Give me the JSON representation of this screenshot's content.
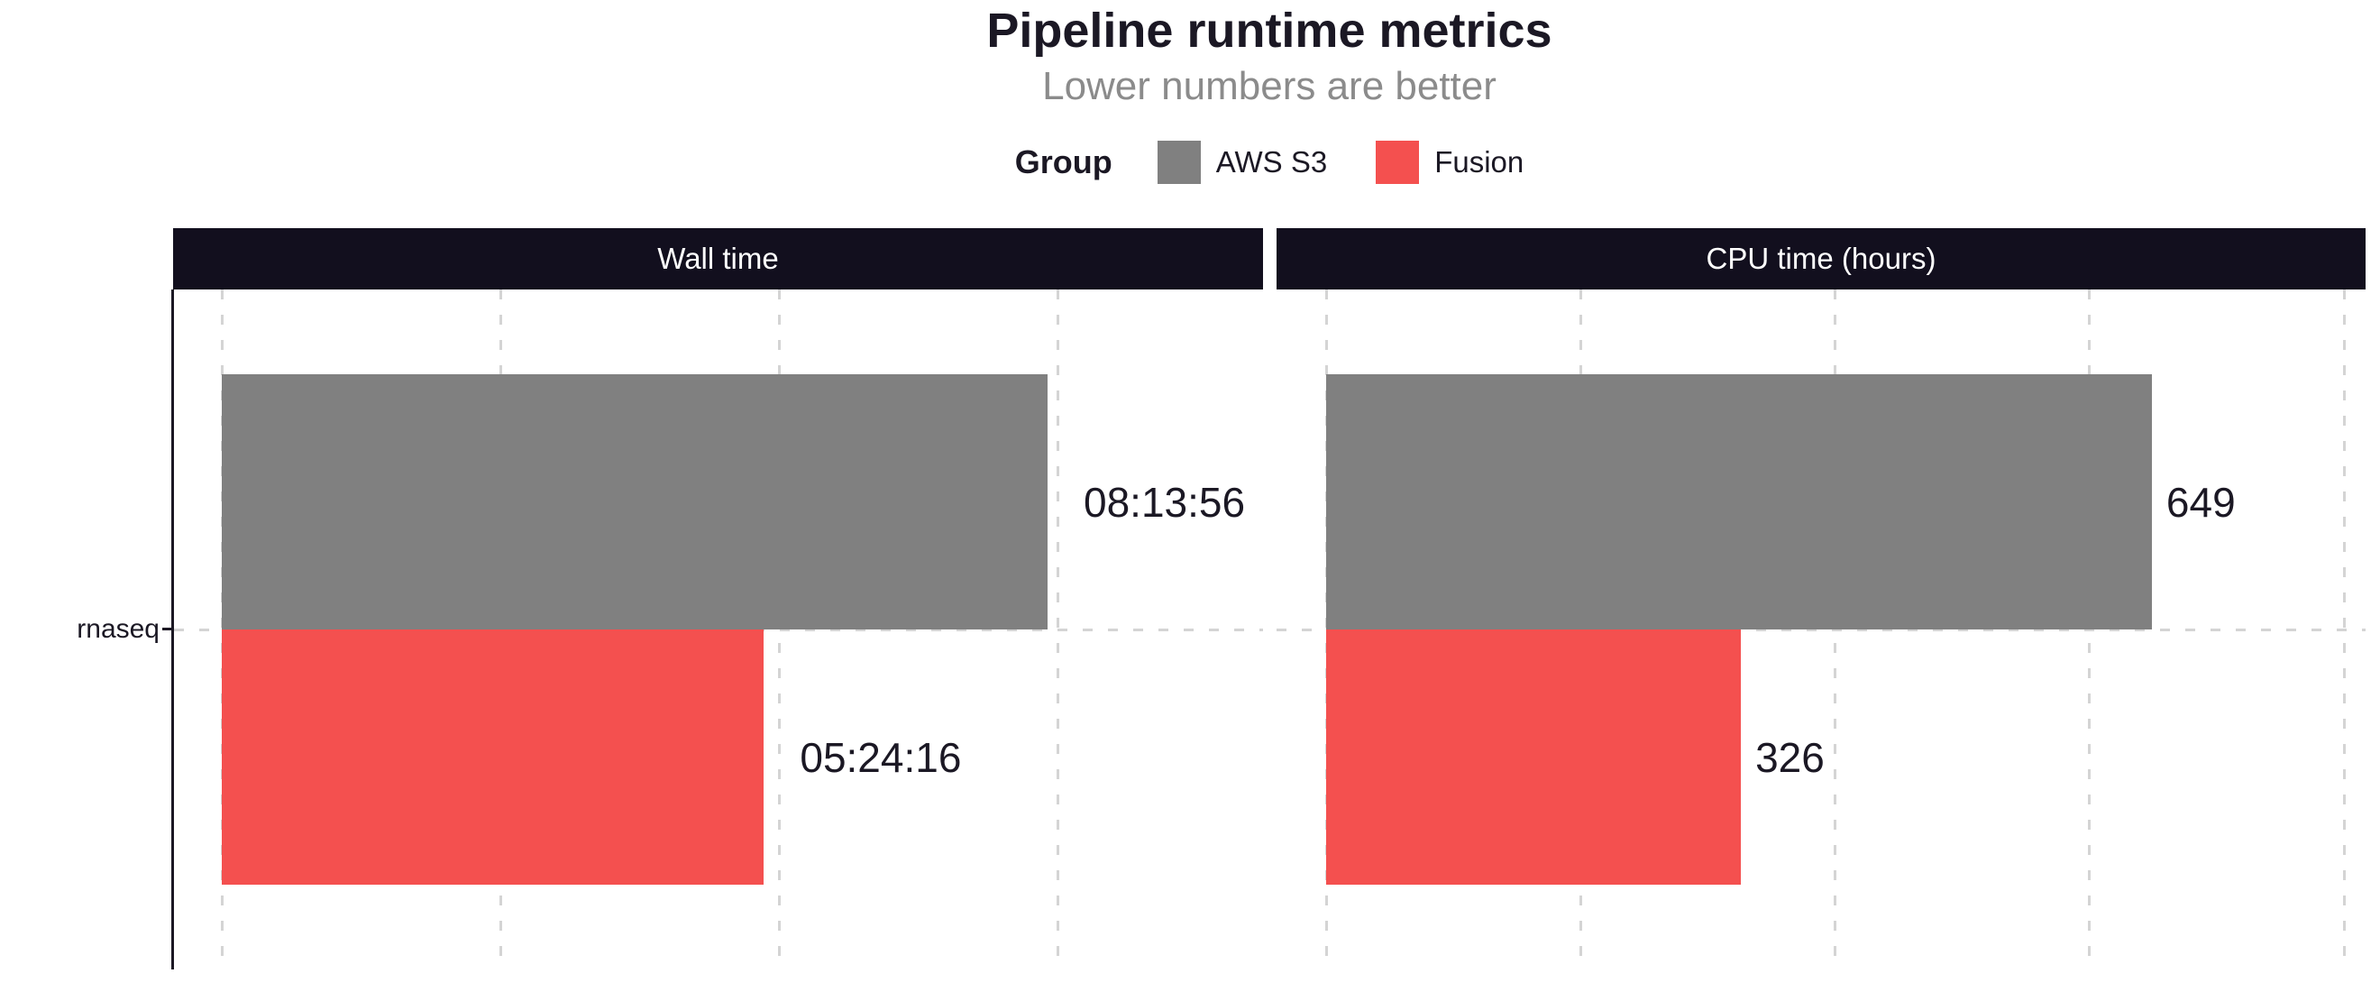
{
  "chart_data": {
    "type": "bar",
    "orientation": "horizontal",
    "title": "Pipeline runtime metrics",
    "subtitle": "Lower numbers are better",
    "legend": {
      "title": "Group",
      "position": "top",
      "entries": [
        {
          "label": "AWS S3",
          "color": "#808080"
        },
        {
          "label": "Fusion",
          "color": "#f4504f"
        }
      ]
    },
    "categories": [
      "rnaseq"
    ],
    "panels": [
      {
        "title": "Wall time",
        "xlim": [
          0,
          37368
        ],
        "gridlines": [
          0,
          10000,
          20000,
          30000
        ],
        "series": [
          {
            "group": "AWS S3",
            "value": 29636,
            "label": "08:13:56"
          },
          {
            "group": "Fusion",
            "value": 19456,
            "label": "05:24:16"
          }
        ]
      },
      {
        "title": "CPU time (hours)",
        "xlim": [
          0,
          817
        ],
        "gridlines": [
          0,
          200,
          400,
          600,
          800
        ],
        "series": [
          {
            "group": "AWS S3",
            "value": 649,
            "label": "649"
          },
          {
            "group": "Fusion",
            "value": 326,
            "label": "326"
          }
        ]
      }
    ],
    "grid_style": "dashed",
    "axis_tick_labels_visible": false,
    "colors": {
      "panel_header_bg": "#120f1e",
      "panel_header_text": "#ffffff",
      "title_text": "#1b1824",
      "subtitle_text": "#8b8b8b",
      "grid": "#d4d4d4",
      "axis": "#1b1824"
    }
  }
}
